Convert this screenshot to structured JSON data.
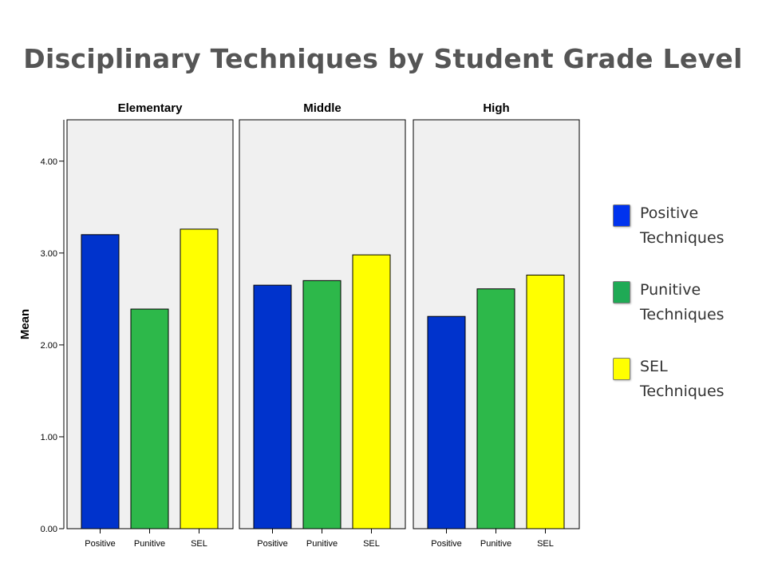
{
  "title": "Disciplinary Techniques by Student Grade Level",
  "chart_data": {
    "type": "bar",
    "panels": [
      "Elementary",
      "Middle",
      "High"
    ],
    "categories": [
      "Positive",
      "Punitive",
      "SEL"
    ],
    "ylabel": "Mean",
    "ylim": [
      0,
      4.45
    ],
    "yticks": [
      "0.00",
      "1.00",
      "2.00",
      "3.00",
      "4.00"
    ],
    "ytick_values": [
      0,
      1,
      2,
      3,
      4
    ],
    "values": [
      [
        3.2,
        2.39,
        3.26
      ],
      [
        2.65,
        2.7,
        2.98
      ],
      [
        2.31,
        2.61,
        2.76
      ]
    ],
    "colors": [
      "#0033cc",
      "#2db84a",
      "#ffff00"
    ]
  },
  "legend": [
    {
      "label": "Positive Techniques",
      "color": "#0033ee"
    },
    {
      "label": "Punitive Techniques",
      "color": "#1faa55"
    },
    {
      "label": "SEL Techniques",
      "color": "#ffff00"
    }
  ]
}
